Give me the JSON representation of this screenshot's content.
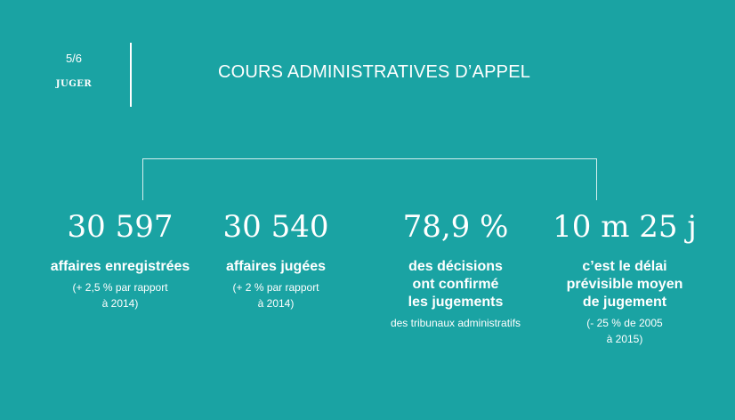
{
  "header": {
    "page_number": "5/6",
    "section": "JUGER",
    "title": "COURS ADMINISTRATIVES D’APPEL"
  },
  "stats": [
    {
      "number": "30 597",
      "desc": "affaires enregistrées",
      "note": "(+  2,5 % par rapport\nà 2014)"
    },
    {
      "number": "30 540",
      "desc": "affaires jugées",
      "note": "(+  2 %  par rapport\nà 2014)"
    },
    {
      "number": "78,9 %",
      "desc": "des décisions\nont confirmé\nles jugements",
      "note": "des tribunaux administratifs"
    },
    {
      "number": "10 m 25 j",
      "desc": "c’est le délai\nprévisible moyen\nde jugement",
      "note": "(- 25 % de 2005\nà 2015)"
    }
  ],
  "colors": {
    "background": "#1aa3a3",
    "text": "#ffffff",
    "bracket": "#d5eeee"
  }
}
